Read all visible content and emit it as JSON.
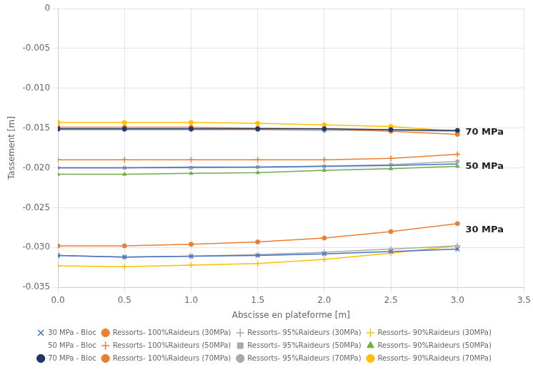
{
  "chart_data": {
    "type": "line",
    "xlabel": "Abscisse en plateforme [m]",
    "ylabel": "Tassement [m]",
    "x": [
      0,
      0.5,
      1,
      1.5,
      2,
      2.5,
      3
    ],
    "series": [
      {
        "name": "30 MPa - Bloc",
        "color": "#4472C4",
        "marker": "x",
        "values": [
          -0.031,
          -0.0312,
          -0.0311,
          -0.031,
          -0.0308,
          -0.0305,
          -0.0302
        ]
      },
      {
        "name": "Ressorts- 100%Raideurs (30MPa)",
        "color": "#ED7D31",
        "marker": "circle",
        "values": [
          -0.0298,
          -0.0298,
          -0.0296,
          -0.0293,
          -0.0288,
          -0.028,
          -0.027
        ]
      },
      {
        "name": "Ressorts- 95%Raideurs (30MPa)",
        "color": "#A9A9A9",
        "marker": "plus",
        "values": [
          -0.031,
          -0.0312,
          -0.0311,
          -0.0309,
          -0.0306,
          -0.0302,
          -0.0298
        ]
      },
      {
        "name": "Ressorts- 90%Raideurs (30MPa)",
        "color": "#FFC000",
        "marker": "plus",
        "values": [
          -0.0323,
          -0.0324,
          -0.0322,
          -0.032,
          -0.0315,
          -0.0307,
          -0.0298
        ]
      },
      {
        "name": "50 MPa - Bloc",
        "color": "#4472C4",
        "marker": "none",
        "values": [
          -0.02,
          -0.02,
          -0.0199,
          -0.0199,
          -0.0198,
          -0.0197,
          -0.0195
        ]
      },
      {
        "name": "Ressorts- 100%Raideurs (50MPa)",
        "color": "#ED7D31",
        "marker": "plus",
        "values": [
          -0.019,
          -0.019,
          -0.019,
          -0.019,
          -0.019,
          -0.0188,
          -0.0183
        ]
      },
      {
        "name": "Ressorts- 95%Raideurs (50MPa)",
        "color": "#A9A9A9",
        "marker": "square",
        "values": [
          -0.02,
          -0.02,
          -0.02,
          -0.0199,
          -0.0198,
          -0.0196,
          -0.0192
        ]
      },
      {
        "name": "Ressorts- 90%Raideurs (50MPa)",
        "color": "#70AD47",
        "marker": "triangle",
        "values": [
          -0.0208,
          -0.0208,
          -0.0207,
          -0.0206,
          -0.0203,
          -0.0201,
          -0.0198
        ]
      },
      {
        "name": "70 MPa - Bloc",
        "color": "#203864",
        "marker": "circle",
        "values": [
          -0.0151,
          -0.0151,
          -0.0151,
          -0.0151,
          -0.0151,
          -0.0152,
          -0.0153
        ]
      },
      {
        "name": "Ressorts- 100%Raideurs (70MPa)",
        "color": "#ED7D31",
        "marker": "circle",
        "values": [
          -0.0149,
          -0.0149,
          -0.0149,
          -0.015,
          -0.0151,
          -0.0154,
          -0.0158
        ]
      },
      {
        "name": "Ressorts- 95%Raideurs (70MPa)",
        "color": "#A9A9A9",
        "marker": "circle",
        "values": [
          -0.0152,
          -0.0152,
          -0.0152,
          -0.0152,
          -0.0153,
          -0.0153,
          -0.0154
        ]
      },
      {
        "name": "Ressorts- 90%Raideurs (70MPa)",
        "color": "#FFC000",
        "marker": "circle",
        "values": [
          -0.0143,
          -0.0143,
          -0.0143,
          -0.0144,
          -0.0146,
          -0.0148,
          -0.0154
        ]
      }
    ],
    "annotations": [
      {
        "text": "70 MPa",
        "x": 3.06,
        "y": -0.0155
      },
      {
        "text": "50 MPa",
        "x": 3.06,
        "y": -0.0198
      },
      {
        "text": "30 MPa",
        "x": 3.06,
        "y": -0.0278
      }
    ],
    "xlim": [
      0,
      3.5
    ],
    "ylim": [
      -0.035,
      0
    ],
    "xticks": [
      {
        "value": 0,
        "label": "0.0"
      },
      0.5,
      {
        "value": 1,
        "label": "1.0"
      },
      1.5,
      {
        "value": 2,
        "label": "2.0"
      },
      2.5,
      {
        "value": 3,
        "label": "3.0"
      },
      3.5
    ],
    "yticks": [
      0,
      -0.005,
      {
        "value": -0.01,
        "label": "-0.010"
      },
      -0.015,
      {
        "value": -0.02,
        "label": "-0.020"
      },
      -0.025,
      {
        "value": -0.03,
        "label": "-0.030"
      },
      -0.035
    ],
    "grid": true,
    "legend": "bottom"
  }
}
